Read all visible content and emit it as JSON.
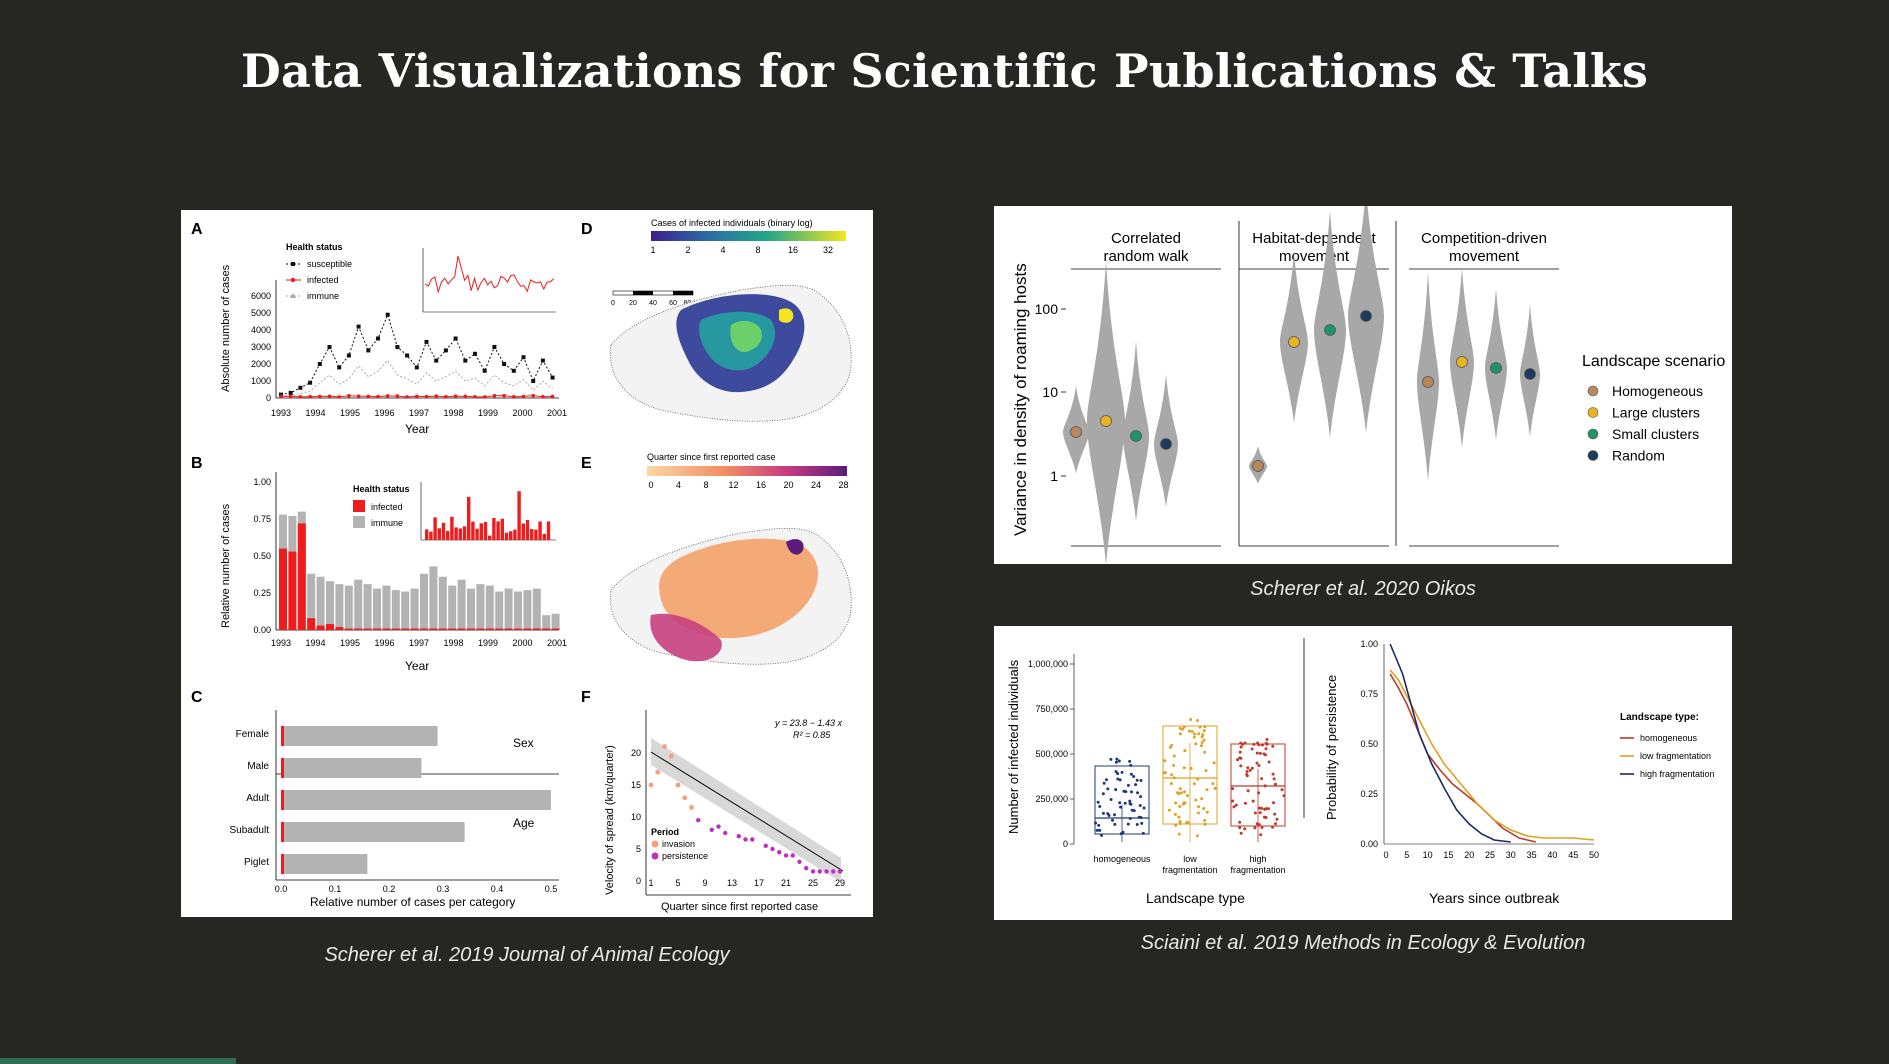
{
  "slide": {
    "title": "Data Visualizations for Scientific Publications & Talks",
    "captions": {
      "left": "Scherer et al. 2019 Journal of Animal Ecology",
      "top_right": "Scherer et al. 2020 Oikos",
      "bottom_right": "Sciaini et al. 2019 Methods in Ecology & Evolution"
    },
    "colors": {
      "background": "#262622",
      "accent_bar": "#2f6b55",
      "infected_red": "#ee1c1c"
    }
  },
  "fig_left": {
    "panel_letters": [
      "A",
      "B",
      "C",
      "D",
      "E",
      "F"
    ],
    "A": {
      "ylabel": "Absolute number of cases",
      "xlabel": "Year",
      "yticks": [
        "0",
        "1000",
        "2000",
        "3000",
        "4000",
        "5000",
        "6000"
      ],
      "xticks": [
        "1993",
        "1994",
        "1995",
        "1996",
        "1997",
        "1998",
        "1999",
        "2000",
        "2001"
      ],
      "legend_title": "Health status",
      "legend": [
        "susceptible",
        "infected",
        "immune"
      ]
    },
    "B": {
      "ylabel": "Relative number of cases",
      "xlabel": "Year",
      "yticks": [
        "0.00",
        "0.25",
        "0.50",
        "0.75",
        "1.00"
      ],
      "xticks": [
        "1993",
        "1994",
        "1995",
        "1996",
        "1997",
        "1998",
        "1999",
        "2000",
        "2001"
      ],
      "legend_title": "Health status",
      "legend": [
        "infected",
        "immune"
      ]
    },
    "C": {
      "xlabel": "Relative number of cases per category",
      "xticks": [
        "0.0",
        "0.1",
        "0.2",
        "0.3",
        "0.4",
        "0.5"
      ],
      "categories": [
        "Female",
        "Male",
        "Adult",
        "Subadult",
        "Piglet"
      ],
      "values": [
        0.29,
        0.26,
        0.5,
        0.34,
        0.16
      ],
      "groups": [
        "Sex",
        "Age"
      ]
    },
    "D": {
      "legend_title": "Cases of infected individuals (binary log)",
      "ticks": [
        "1",
        "2",
        "4",
        "8",
        "16",
        "32"
      ],
      "scale_labels": [
        "0",
        "20",
        "40",
        "60",
        "80 km"
      ]
    },
    "E": {
      "legend_title": "Quarter since first reported case",
      "ticks": [
        "0",
        "4",
        "8",
        "12",
        "16",
        "20",
        "24",
        "28"
      ]
    },
    "F": {
      "ylabel": "Velocity of spread (km/quarter)",
      "xlabel": "Quarter since first reported case",
      "yticks": [
        "0",
        "5",
        "10",
        "15",
        "20"
      ],
      "xticks": [
        "1",
        "5",
        "9",
        "13",
        "17",
        "21",
        "25",
        "29"
      ],
      "equation": "y = 23.8 − 1.43 x",
      "r2": "R² = 0.85",
      "legend_title": "Period",
      "legend": [
        "invasion",
        "persistence"
      ]
    }
  },
  "fig_top_right": {
    "ylabel": "Variance in density of roaming hosts",
    "facets": [
      [
        "Correlated",
        "random walk"
      ],
      [
        "Habitat-dependent",
        "movement"
      ],
      [
        "Competition-driven",
        "movement"
      ]
    ],
    "yticks": [
      "1",
      "10",
      "100"
    ],
    "legend_title": "Landscape scenario",
    "legend": [
      {
        "label": "Homogeneous",
        "color": "#b8875a"
      },
      {
        "label": "Large clusters",
        "color": "#e8b520"
      },
      {
        "label": "Small clusters",
        "color": "#1f9467"
      },
      {
        "label": "Random",
        "color": "#1f3a5f"
      }
    ]
  },
  "fig_bottom_right": {
    "box": {
      "ylabel": "Number of infected individuals",
      "xlabel": "Landscape type",
      "yticks": [
        "0",
        "250,000",
        "500,000",
        "750,000",
        "1,000,000"
      ],
      "categories": [
        [
          "homogeneous"
        ],
        [
          "low",
          "fragmentation"
        ],
        [
          "high",
          "fragmentation"
        ]
      ]
    },
    "persistence": {
      "ylabel": "Probability of persistence",
      "xlabel": "Years since outbreak",
      "yticks": [
        "0.00",
        "0.25",
        "0.50",
        "0.75",
        "1.00"
      ],
      "xticks": [
        "0",
        "5",
        "10",
        "15",
        "20",
        "25",
        "30",
        "35",
        "40",
        "45",
        "50"
      ],
      "legend_title": "Landscape type:",
      "legend": [
        {
          "label": "homogeneous",
          "color": "#c0392b"
        },
        {
          "label": "low fragmentation",
          "color": "#e0a020"
        },
        {
          "label": "high fragmentation",
          "color": "#1a2a6c"
        }
      ]
    }
  }
}
